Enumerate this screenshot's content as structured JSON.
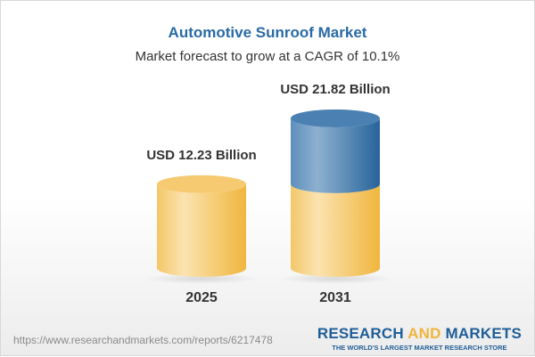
{
  "title": "Automotive Sunroof Market",
  "subtitle": "Market forecast to grow at a CAGR of 10.1%",
  "footer": {
    "url": "https://www.researchandmarkets.com/reports/6217478",
    "logo_part1": "RESEARCH",
    "logo_part2": "AND",
    "logo_part3": "MARKETS",
    "tagline": "THE WORLD'S LARGEST MARKET RESEARCH STORE"
  },
  "colors": {
    "base": "#f3c35a",
    "growth": "#3f78ac",
    "title": "#2a6aa6"
  },
  "chart_data": {
    "type": "bar",
    "style": "3d-cylinder",
    "categories": [
      "2025",
      "2031"
    ],
    "values": [
      12.23,
      21.82
    ],
    "data_labels": [
      "USD 12.23 Billion",
      "USD 21.82 Billion"
    ],
    "unit": "USD Billion",
    "grid": false
  }
}
